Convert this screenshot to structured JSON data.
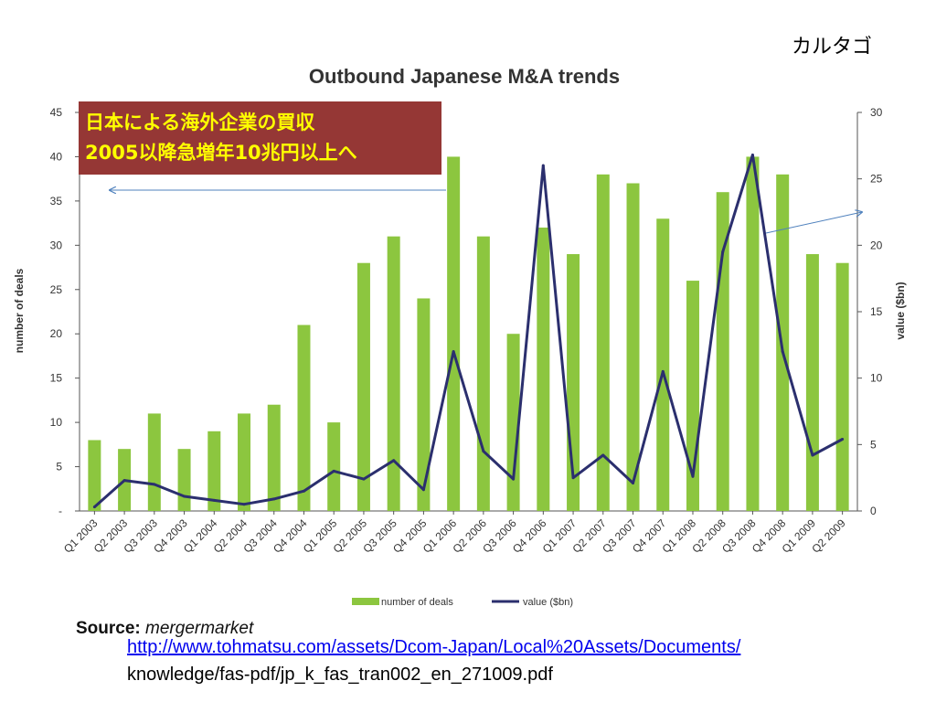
{
  "corner_label": "カルタゴ",
  "source": {
    "label": "Source:",
    "name": "mergermarket"
  },
  "link": {
    "line1": "http://www.tohmatsu.com/assets/Dcom-Japan/Local%20Assets/Documents/",
    "line2": "knowledge/fas-pdf/jp_k_fas_tran002_en_271009.pdf"
  },
  "annotation": {
    "line1": "日本による海外企業の買収",
    "line2": "2005以降急増年10兆円以上へ"
  },
  "colors": {
    "bar": "#8cc63f",
    "line": "#2b2f6e",
    "annotation_bg": "#953735",
    "annotation_text": "#ffff00",
    "arrow": "#4f81bd"
  },
  "chart_data": {
    "type": "bar",
    "title": "Outbound Japanese M&A trends",
    "categories": [
      "Q1 2003",
      "Q2 2003",
      "Q3 2003",
      "Q4 2003",
      "Q1 2004",
      "Q2 2004",
      "Q3 2004",
      "Q4 2004",
      "Q1 2005",
      "Q2 2005",
      "Q3 2005",
      "Q4 2005",
      "Q1 2006",
      "Q2 2006",
      "Q3 2006",
      "Q4 2006",
      "Q1 2007",
      "Q2 2007",
      "Q3 2007",
      "Q4 2007",
      "Q1 2008",
      "Q2 2008",
      "Q3 2008",
      "Q4 2008",
      "Q1 2009",
      "Q2 2009"
    ],
    "series": [
      {
        "name": "number of deals",
        "type": "bar",
        "axis": "left",
        "values": [
          8,
          7,
          11,
          7,
          9,
          11,
          12,
          21,
          10,
          28,
          31,
          24,
          40,
          31,
          20,
          32,
          29,
          38,
          37,
          33,
          26,
          36,
          40,
          38,
          29,
          28
        ]
      },
      {
        "name": "value ($bn)",
        "type": "line",
        "axis": "right",
        "values": [
          0.3,
          2.3,
          2.0,
          1.1,
          0.8,
          0.5,
          0.9,
          1.5,
          3.0,
          2.4,
          3.8,
          1.6,
          12.0,
          4.5,
          2.4,
          26.0,
          2.5,
          4.2,
          2.1,
          10.5,
          2.6,
          19.5,
          26.8,
          12.0,
          4.2,
          5.4
        ]
      }
    ],
    "ylabel": "number of deals",
    "ylabel_right": "value ($bn)",
    "ylim": [
      0,
      45
    ],
    "ylim_right": [
      0,
      30
    ],
    "yticks": [
      "-",
      "5",
      "10",
      "15",
      "20",
      "25",
      "30",
      "35",
      "40",
      "45"
    ],
    "yticks_right": [
      "0",
      "5",
      "10",
      "15",
      "20",
      "25",
      "30"
    ],
    "legend_position": "bottom"
  }
}
